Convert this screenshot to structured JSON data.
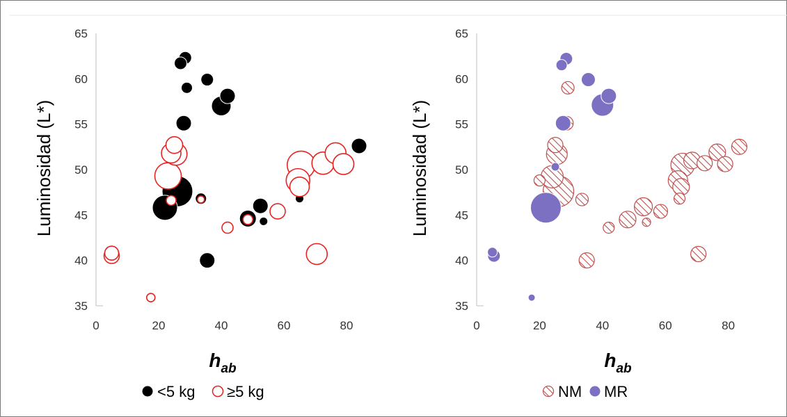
{
  "colors": {
    "black": "#000000",
    "red": "#e8231f",
    "nm": "#c0504d",
    "mr": "#7b70c1",
    "axis": "#bfbfbf"
  },
  "chart_data": [
    {
      "type": "scatter",
      "ylabel": "Luminosidad (L*)",
      "xlabel_main": "h",
      "xlabel_sub": "ab",
      "xlim": [
        0,
        90
      ],
      "ylim": [
        35,
        65
      ],
      "xticks": [
        "0",
        "20",
        "40",
        "60",
        "80"
      ],
      "yticks": [
        "35",
        "40",
        "45",
        "50",
        "55",
        "60",
        "65"
      ],
      "legend": {
        "position": "bottom",
        "items": [
          "<5 kg",
          "≥5 kg"
        ]
      },
      "series": [
        {
          "name": "<5 kg",
          "style": "filled-black",
          "points": [
            {
              "x": 28.5,
              "y": 62.3,
              "s": 9
            },
            {
              "x": 27,
              "y": 61.7,
              "s": 9
            },
            {
              "x": 29,
              "y": 59,
              "s": 8
            },
            {
              "x": 35.5,
              "y": 59.9,
              "s": 9
            },
            {
              "x": 42,
              "y": 58.1,
              "s": 11
            },
            {
              "x": 40,
              "y": 57,
              "s": 14
            },
            {
              "x": 28,
              "y": 55.1,
              "s": 11
            },
            {
              "x": 84,
              "y": 52.6,
              "s": 11
            },
            {
              "x": 21,
              "y": 48.8,
              "s": 6
            },
            {
              "x": 26,
              "y": 47.6,
              "s": 22
            },
            {
              "x": 22,
              "y": 45.8,
              "s": 18
            },
            {
              "x": 33.5,
              "y": 46.8,
              "s": 8
            },
            {
              "x": 52.5,
              "y": 46,
              "s": 11
            },
            {
              "x": 48.5,
              "y": 44.6,
              "s": 12
            },
            {
              "x": 53.5,
              "y": 44.3,
              "s": 6
            },
            {
              "x": 65,
              "y": 46.8,
              "s": 6
            },
            {
              "x": 68,
              "y": 51.2,
              "s": 6
            },
            {
              "x": 35.5,
              "y": 40,
              "s": 11
            }
          ]
        },
        {
          "name": "≥5 kg",
          "style": "open-red",
          "points": [
            {
              "x": 25,
              "y": 52.7,
              "s": 12
            },
            {
              "x": 24,
              "y": 51.8,
              "s": 14
            },
            {
              "x": 25.5,
              "y": 51.7,
              "s": 16
            },
            {
              "x": 23,
              "y": 49.3,
              "s": 19
            },
            {
              "x": 24,
              "y": 46.6,
              "s": 7
            },
            {
              "x": 33.5,
              "y": 46.7,
              "s": 5
            },
            {
              "x": 48.5,
              "y": 44.5,
              "s": 7
            },
            {
              "x": 42,
              "y": 43.6,
              "s": 8
            },
            {
              "x": 58,
              "y": 45.4,
              "s": 11
            },
            {
              "x": 65,
              "y": 48.1,
              "s": 14
            },
            {
              "x": 64.5,
              "y": 48.8,
              "s": 17
            },
            {
              "x": 65.5,
              "y": 50.5,
              "s": 20
            },
            {
              "x": 72.5,
              "y": 50.7,
              "s": 16
            },
            {
              "x": 76.5,
              "y": 51.8,
              "s": 15
            },
            {
              "x": 79,
              "y": 50.6,
              "s": 15
            },
            {
              "x": 70.5,
              "y": 40.7,
              "s": 15
            },
            {
              "x": 5,
              "y": 40.8,
              "s": 10
            },
            {
              "x": 5,
              "y": 40.5,
              "s": 11
            },
            {
              "x": 17.5,
              "y": 35.9,
              "s": 6
            }
          ]
        }
      ]
    },
    {
      "type": "scatter",
      "ylabel": "Luminosidad (L*)",
      "xlabel_main": "h",
      "xlabel_sub": "ab",
      "xlim": [
        0,
        90
      ],
      "ylim": [
        35,
        65
      ],
      "xticks": [
        "0",
        "20",
        "40",
        "60",
        "80"
      ],
      "yticks": [
        "35",
        "40",
        "45",
        "50",
        "55",
        "60",
        "65"
      ],
      "legend": {
        "position": "bottom",
        "items": [
          "NM",
          "MR"
        ]
      },
      "series": [
        {
          "name": "NM",
          "style": "hatched-red",
          "points": [
            {
              "x": 29,
              "y": 59,
              "s": 9
            },
            {
              "x": 28.5,
              "y": 55.1,
              "s": 10
            },
            {
              "x": 25,
              "y": 52.7,
              "s": 11
            },
            {
              "x": 25.5,
              "y": 51.7,
              "s": 15
            },
            {
              "x": 20,
              "y": 48.8,
              "s": 8
            },
            {
              "x": 24,
              "y": 49.2,
              "s": 16
            },
            {
              "x": 26,
              "y": 47.6,
              "s": 22
            },
            {
              "x": 33.5,
              "y": 46.7,
              "s": 9
            },
            {
              "x": 42,
              "y": 43.6,
              "s": 8
            },
            {
              "x": 48,
              "y": 44.5,
              "s": 12
            },
            {
              "x": 53,
              "y": 45.9,
              "s": 13
            },
            {
              "x": 54,
              "y": 44.2,
              "s": 6
            },
            {
              "x": 58.5,
              "y": 45.4,
              "s": 10
            },
            {
              "x": 64.5,
              "y": 46.8,
              "s": 8
            },
            {
              "x": 65,
              "y": 48.1,
              "s": 12
            },
            {
              "x": 64,
              "y": 48.8,
              "s": 14
            },
            {
              "x": 65.5,
              "y": 50.5,
              "s": 17
            },
            {
              "x": 68.5,
              "y": 51,
              "s": 12
            },
            {
              "x": 72.5,
              "y": 50.7,
              "s": 11
            },
            {
              "x": 76.5,
              "y": 51.9,
              "s": 12
            },
            {
              "x": 79,
              "y": 50.6,
              "s": 11
            },
            {
              "x": 83.5,
              "y": 52.5,
              "s": 11
            },
            {
              "x": 35,
              "y": 40,
              "s": 11
            },
            {
              "x": 70.5,
              "y": 40.7,
              "s": 11
            }
          ]
        },
        {
          "name": "MR",
          "style": "filled-purple",
          "points": [
            {
              "x": 28.5,
              "y": 62.2,
              "s": 9
            },
            {
              "x": 27,
              "y": 61.5,
              "s": 8
            },
            {
              "x": 35.5,
              "y": 59.9,
              "s": 10
            },
            {
              "x": 42,
              "y": 58.1,
              "s": 11
            },
            {
              "x": 40,
              "y": 57.1,
              "s": 16
            },
            {
              "x": 27.5,
              "y": 55.1,
              "s": 11
            },
            {
              "x": 25,
              "y": 50.3,
              "s": 6
            },
            {
              "x": 22,
              "y": 45.8,
              "s": 22
            },
            {
              "x": 5,
              "y": 40.9,
              "s": 7
            },
            {
              "x": 5.5,
              "y": 40.5,
              "s": 9
            },
            {
              "x": 17.5,
              "y": 35.9,
              "s": 5
            }
          ]
        }
      ]
    }
  ]
}
